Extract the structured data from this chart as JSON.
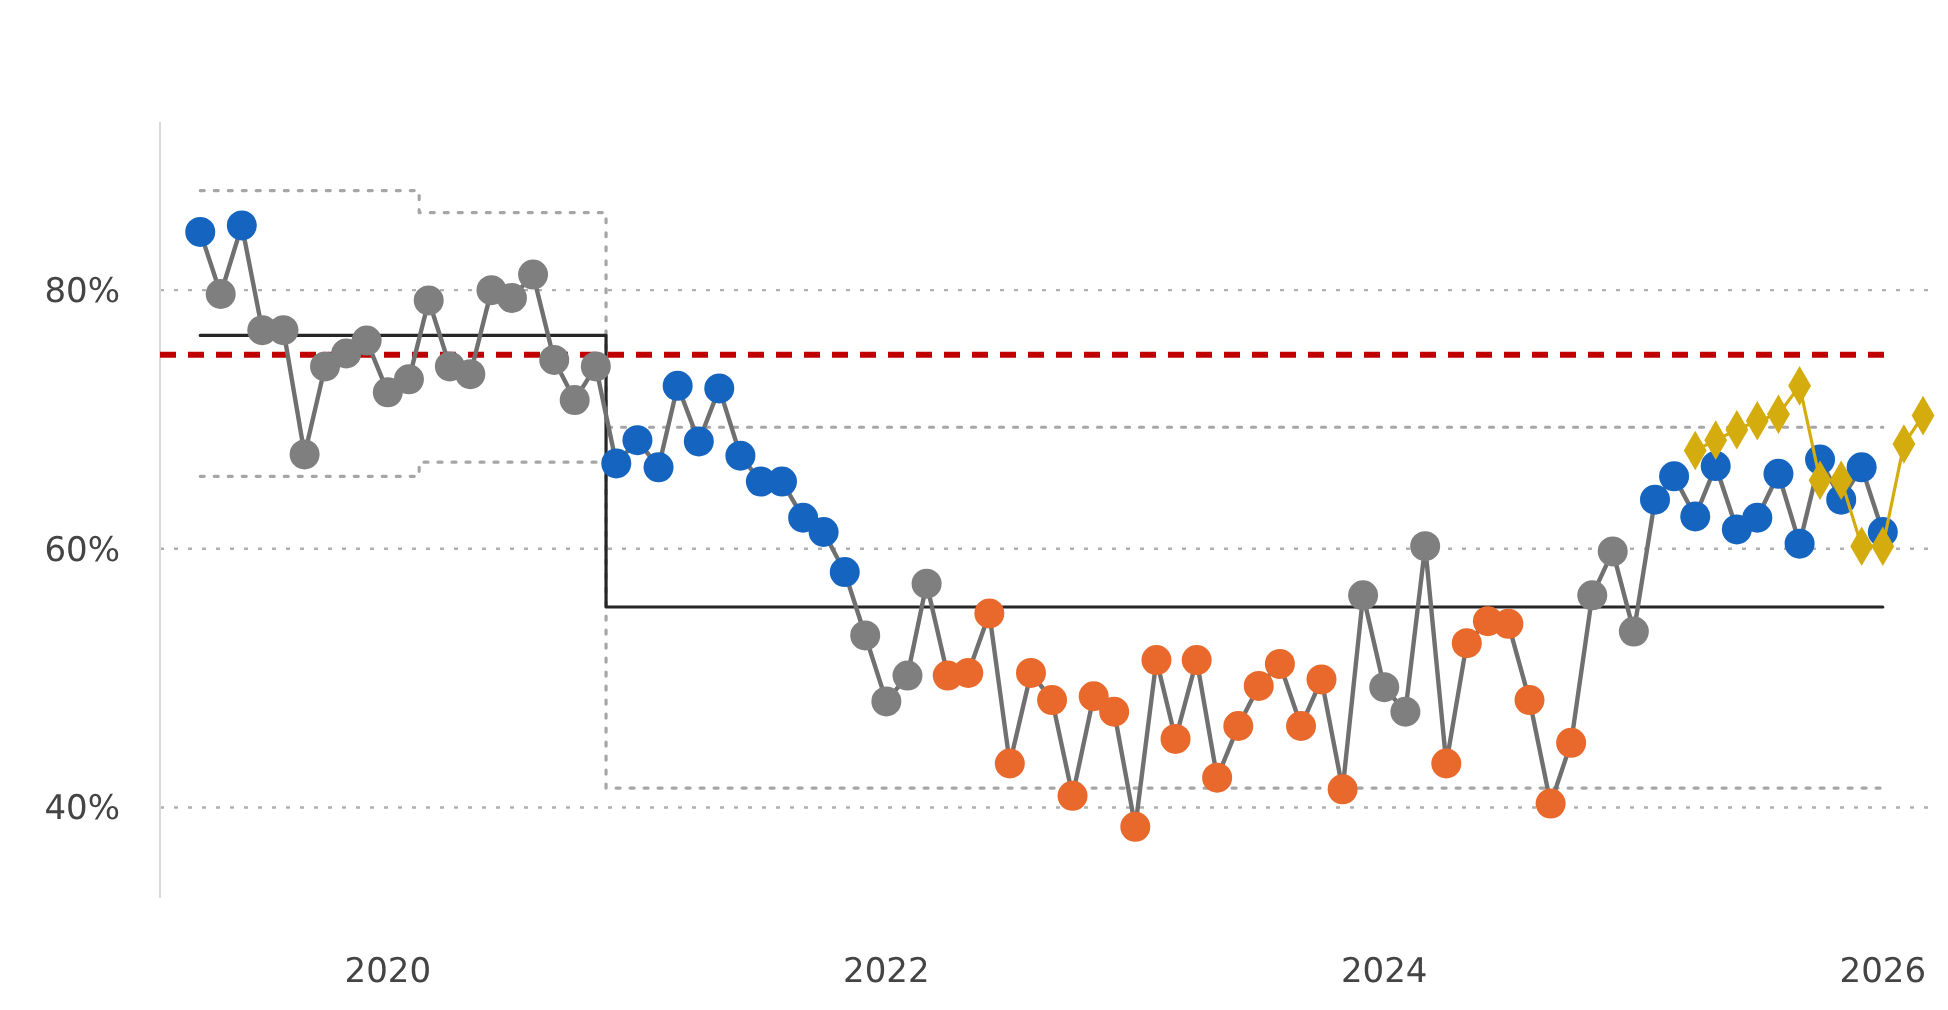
{
  "chart_data": {
    "type": "line",
    "x": [
      "2019-04",
      "2019-05",
      "2019-06",
      "2019-07",
      "2019-08",
      "2019-09",
      "2019-10",
      "2019-11",
      "2019-12",
      "2020-01",
      "2020-02",
      "2020-03",
      "2020-04",
      "2020-05",
      "2020-06",
      "2020-07",
      "2020-08",
      "2020-09",
      "2020-10",
      "2020-11",
      "2020-12",
      "2021-01",
      "2021-02",
      "2021-03",
      "2021-04",
      "2021-05",
      "2021-06",
      "2021-07",
      "2021-08",
      "2021-09",
      "2021-10",
      "2021-11",
      "2021-12",
      "2022-01",
      "2022-02",
      "2022-03",
      "2022-04",
      "2022-05",
      "2022-06",
      "2022-07",
      "2022-08",
      "2022-09",
      "2022-10",
      "2022-11",
      "2022-12",
      "2023-01",
      "2023-02",
      "2023-03",
      "2023-04",
      "2023-05",
      "2023-06",
      "2023-07",
      "2023-08",
      "2023-09",
      "2023-10",
      "2023-11",
      "2023-12",
      "2024-01",
      "2024-02",
      "2024-03",
      "2024-04",
      "2024-05",
      "2024-06",
      "2024-07",
      "2024-08",
      "2024-09",
      "2024-10",
      "2024-11",
      "2024-12",
      "2025-01",
      "2025-02",
      "2025-03",
      "2025-04",
      "2025-05",
      "2025-06",
      "2025-07",
      "2025-08",
      "2025-09",
      "2025-10",
      "2025-11",
      "2025-12",
      "2026-01"
    ],
    "series": [
      {
        "type": "step",
        "color": "#a6a6a6",
        "line_style": "dotted",
        "marker": "none",
        "x": [
          "2019-04",
          "2020-02-16",
          "2020-11-16",
          "2026-01"
        ],
        "values": [
          87.7,
          86,
          69.4,
          69.4
        ]
      },
      {
        "type": "step",
        "color": "#a6a6a6",
        "line_style": "dotted",
        "marker": "none",
        "x": [
          "2019-04",
          "2020-02-16",
          "2020-11-16",
          "2026-01"
        ],
        "values": [
          65.6,
          66.7,
          41.5,
          41.5
        ]
      },
      {
        "type": "step",
        "color": "#262626",
        "line_style": "solid",
        "marker": "none",
        "x": [
          "2019-04",
          "2020-11-16",
          "2026-01"
        ],
        "values": [
          76.5,
          55.5,
          55.5
        ]
      },
      {
        "color": "#707070",
        "line_style": "solid",
        "marker": "circle",
        "values": [
          84.5,
          79.7,
          85,
          76.9,
          76.9,
          67.3,
          74.1,
          75.1,
          76.1,
          72.1,
          73.1,
          79.2,
          74.1,
          73.5,
          80,
          79.4,
          81.2,
          74.6,
          71.5,
          74.1,
          66.6,
          68.4,
          66.3,
          72.6,
          68.3,
          72.4,
          67.2,
          65.2,
          65.2,
          62.4,
          61.3,
          58.2,
          53.3,
          48.2,
          50.2,
          57.3,
          50.2,
          50.4,
          55,
          43.4,
          50.4,
          48.3,
          40.9,
          48.6,
          47.4,
          38.5,
          51.4,
          45.3,
          51.4,
          42.3,
          46.3,
          49.4,
          51.1,
          46.3,
          49.9,
          41.4,
          56.4,
          49.3,
          47.4,
          60.2,
          43.4,
          52.7,
          54.4,
          54.2,
          48.3,
          40.3,
          45,
          56.4,
          59.8,
          53.6,
          63.8,
          65.6,
          62.5,
          66.4,
          61.5,
          62.4,
          65.8,
          60.4,
          66.9,
          63.8,
          66.3,
          61.3
        ],
        "colors": [
          "#1565c0",
          "#7f7f7f",
          "#1565c0",
          "#7f7f7f",
          "#7f7f7f",
          "#7f7f7f",
          "#7f7f7f",
          "#7f7f7f",
          "#7f7f7f",
          "#7f7f7f",
          "#7f7f7f",
          "#7f7f7f",
          "#7f7f7f",
          "#7f7f7f",
          "#7f7f7f",
          "#7f7f7f",
          "#7f7f7f",
          "#7f7f7f",
          "#7f7f7f",
          "#7f7f7f",
          "#1565c0",
          "#1565c0",
          "#1565c0",
          "#1565c0",
          "#1565c0",
          "#1565c0",
          "#1565c0",
          "#1565c0",
          "#1565c0",
          "#1565c0",
          "#1565c0",
          "#1565c0",
          "#7f7f7f",
          "#7f7f7f",
          "#7f7f7f",
          "#7f7f7f",
          "#e8692b",
          "#e8692b",
          "#e8692b",
          "#e8692b",
          "#e8692b",
          "#e8692b",
          "#e8692b",
          "#e8692b",
          "#e8692b",
          "#e8692b",
          "#e8692b",
          "#e8692b",
          "#e8692b",
          "#e8692b",
          "#e8692b",
          "#e8692b",
          "#e8692b",
          "#e8692b",
          "#e8692b",
          "#e8692b",
          "#7f7f7f",
          "#7f7f7f",
          "#7f7f7f",
          "#7f7f7f",
          "#e8692b",
          "#e8692b",
          "#e8692b",
          "#e8692b",
          "#e8692b",
          "#e8692b",
          "#e8692b",
          "#7f7f7f",
          "#7f7f7f",
          "#7f7f7f",
          "#1565c0",
          "#1565c0",
          "#1565c0",
          "#1565c0",
          "#1565c0",
          "#1565c0",
          "#1565c0",
          "#1565c0",
          "#1565c0",
          "#1565c0",
          "#1565c0",
          "#1565c0"
        ]
      },
      {
        "color": "#d4ac0d",
        "line_style": "solid",
        "marker": "diamond",
        "x": [
          "2025-04",
          "2025-05",
          "2025-06",
          "2025-07",
          "2025-08",
          "2025-09",
          "2025-10",
          "2025-11",
          "2025-12",
          "2026-01",
          "2026-02",
          "2026-03"
        ],
        "values": [
          67.6,
          68.4,
          69.2,
          69.9,
          70.4,
          72.6,
          65.3,
          65.3,
          60.2,
          60.2,
          68.1,
          70.3
        ]
      }
    ],
    "ref_lines": [
      {
        "axis": "y",
        "value": 75,
        "color": "#c00000",
        "line_style": "dashed"
      }
    ],
    "xlim": [
      "2019-02",
      "2026-03-20"
    ],
    "xticks": [
      "2020",
      "2022",
      "2024",
      "2026"
    ],
    "ylim": [
      33,
      93
    ],
    "yticks": [
      {
        "value": 40,
        "label": "40%"
      },
      {
        "value": 60,
        "label": "60%"
      },
      {
        "value": 80,
        "label": "80%"
      }
    ],
    "grid": "y"
  }
}
